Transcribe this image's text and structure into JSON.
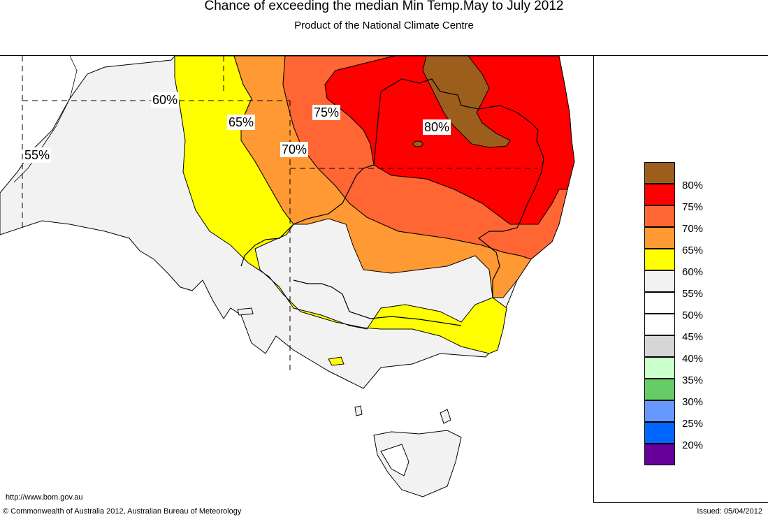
{
  "header": {
    "title": "Chance of exceeding the median Min Temp.May to July 2012",
    "subtitle": "Product of the National Climate Centre"
  },
  "map": {
    "contour_labels": [
      "55%",
      "60%",
      "65%",
      "70%",
      "75%",
      "80%"
    ]
  },
  "legend": {
    "items": [
      {
        "label": "80%",
        "color": "#9c5e1c"
      },
      {
        "label": "75%",
        "color": "#ff0000"
      },
      {
        "label": "70%",
        "color": "#ff6633"
      },
      {
        "label": "65%",
        "color": "#ff9933"
      },
      {
        "label": "60%",
        "color": "#ffff00"
      },
      {
        "label": "55%",
        "color": "#f2f2f2"
      },
      {
        "label": "50%",
        "color": "#ffffff"
      },
      {
        "label": "45%",
        "color": "#ffffff"
      },
      {
        "label": "40%",
        "color": "#d6d6d6"
      },
      {
        "label": "35%",
        "color": "#ccffcc"
      },
      {
        "label": "30%",
        "color": "#66cc66"
      },
      {
        "label": "25%",
        "color": "#6699ff"
      },
      {
        "label": "20%",
        "color": "#0066ff"
      },
      {
        "label": "",
        "color": "#660099"
      }
    ]
  },
  "footer": {
    "url": "http://www.bom.gov.au",
    "copyright": "© Commonwealth of Australia 2012, Australian Bureau of Meteorology",
    "issued": "Issued: 05/04/2012"
  }
}
